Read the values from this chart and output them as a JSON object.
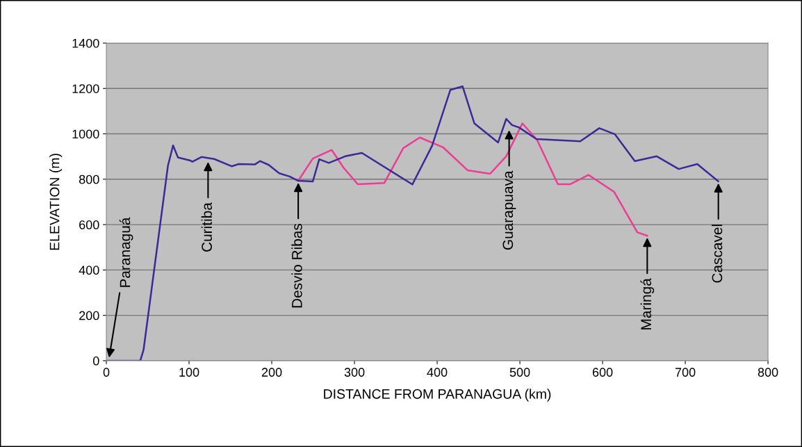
{
  "chart_data": {
    "type": "line",
    "xlabel": "DISTANCE FROM PARANAGUA (km)",
    "ylabel": "ELEVATION (m)",
    "xlim": [
      0,
      800
    ],
    "xticks": [
      0,
      100,
      200,
      300,
      400,
      500,
      600,
      700,
      800
    ],
    "ylim": [
      0,
      1400
    ],
    "yticks": [
      0,
      200,
      400,
      600,
      800,
      1000,
      1200,
      1400
    ],
    "grid": "y",
    "legend": false,
    "marker": "none",
    "line_style": "solid",
    "series": [
      {
        "color": "#ec3c96",
        "x": [
          232,
          249.6,
          272.5,
          287,
          304,
          336,
          359,
          379,
          407,
          437,
          464,
          483.5,
          503,
          521,
          546,
          561,
          583,
          614,
          642,
          654
        ],
        "values": [
          793,
          891,
          929,
          850,
          778,
          783,
          937,
          984,
          941,
          839,
          824,
          901,
          1046,
          972,
          778,
          778,
          819,
          744,
          566,
          551
        ]
      },
      {
        "color": "#3b2a96",
        "x": [
          0,
          41,
          45,
          74.5,
          80.7,
          86.6,
          101,
          104,
          115,
          130.5,
          151.5,
          160,
          179.6,
          185.7,
          196.4,
          209,
          221.6,
          232,
          249.6,
          257.4,
          269,
          288.8,
          309,
          370,
          393.8,
          416,
          430.8,
          445,
          473.7,
          483.5,
          490.5,
          499,
          520,
          573,
          596,
          615,
          639,
          665.5,
          692,
          714.5,
          739.8
        ],
        "values": [
          0,
          0,
          48,
          860,
          949,
          896,
          883,
          877,
          898,
          889,
          857,
          867,
          865,
          880,
          863,
          826,
          812,
          793,
          790,
          888,
          872,
          901,
          916,
          777,
          947,
          1194,
          1209,
          1046,
          962,
          1066,
          1039,
          1028,
          977,
          967,
          1025,
          998,
          880,
          901,
          845,
          867,
          791
        ]
      }
    ],
    "annotations": [
      {
        "text": "Paranaguá",
        "x": 3,
        "y": 5
      },
      {
        "text": "Curitiba",
        "x": 123,
        "y": 885
      },
      {
        "text": "Desvio Ribas",
        "x": 232,
        "y": 793
      },
      {
        "text": "Guarapuava",
        "x": 487,
        "y": 1025
      },
      {
        "text": "Maringá",
        "x": 654,
        "y": 551
      },
      {
        "text": "Cascavel",
        "x": 740,
        "y": 791
      }
    ]
  }
}
